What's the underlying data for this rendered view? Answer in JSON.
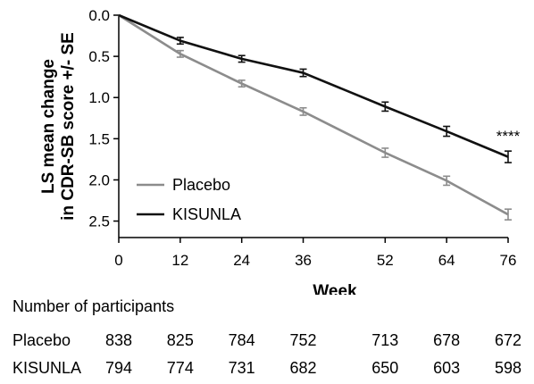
{
  "chart_data": {
    "type": "line",
    "xlabel": "Week",
    "ylabel_lines": [
      "LS mean change",
      "in CDR-SB score +/- SE"
    ],
    "x": [
      0,
      12,
      24,
      36,
      52,
      64,
      76
    ],
    "x_ticks": [
      0,
      12,
      24,
      36,
      52,
      64,
      76
    ],
    "x_tick_labels": [
      "0",
      "12",
      "24",
      "36",
      "52",
      "64",
      "76"
    ],
    "xlim": [
      0,
      76
    ],
    "y_ticks": [
      0.0,
      0.5,
      1.0,
      1.5,
      2.0,
      2.5
    ],
    "y_tick_labels": [
      "0.0",
      "0.5",
      "1.0",
      "1.5",
      "2.0",
      "2.5"
    ],
    "ylim": [
      0,
      2.7
    ],
    "y_axis_inverted": true,
    "grid": false,
    "legend_position": "lower-left",
    "series": [
      {
        "name": "Placebo",
        "color": "#8c8c8c",
        "values": [
          0,
          0.47,
          0.83,
          1.17,
          1.67,
          2.01,
          2.42
        ],
        "se": [
          0,
          0.04,
          0.04,
          0.045,
          0.055,
          0.055,
          0.065
        ]
      },
      {
        "name": "KISUNLA",
        "color": "#111111",
        "values": [
          0,
          0.31,
          0.53,
          0.7,
          1.11,
          1.41,
          1.72
        ],
        "se": [
          0,
          0.04,
          0.04,
          0.045,
          0.055,
          0.06,
          0.07
        ]
      }
    ],
    "annotations": [
      {
        "text": "****",
        "x": 76
      }
    ]
  },
  "participants": {
    "title": "Number of participants",
    "rows": [
      {
        "label": "Placebo",
        "counts": [
          "838",
          "825",
          "784",
          "752",
          "713",
          "678",
          "672"
        ]
      },
      {
        "label": "KISUNLA",
        "counts": [
          "794",
          "774",
          "731",
          "682",
          "650",
          "603",
          "598"
        ]
      }
    ]
  }
}
